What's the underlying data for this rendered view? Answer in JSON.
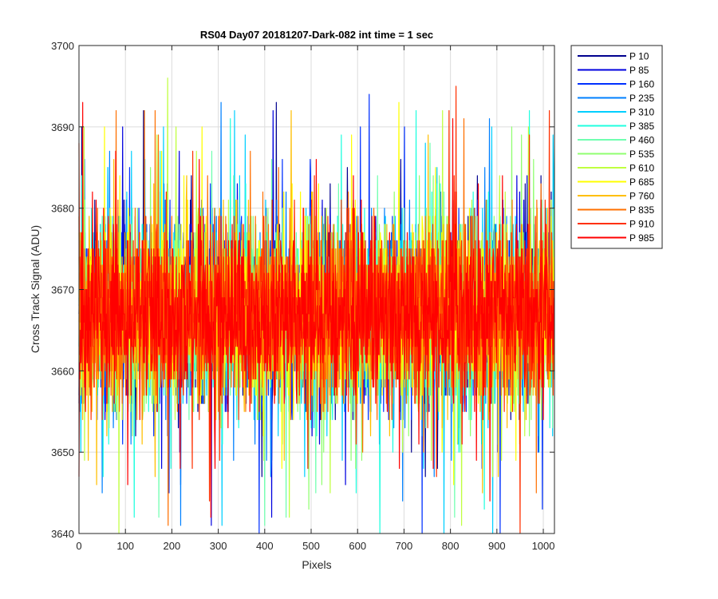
{
  "chart_data": {
    "type": "line",
    "title": "RS04 Day07 20181207-Dark-082 int time = 1 sec",
    "xlabel": "Pixels",
    "ylabel": "Cross Track Signal (ADU)",
    "xlim": [
      0,
      1024
    ],
    "ylim": [
      3640,
      3700
    ],
    "xticks": [
      0,
      100,
      200,
      300,
      400,
      500,
      600,
      700,
      800,
      900,
      1000
    ],
    "yticks": [
      3640,
      3650,
      3660,
      3670,
      3680,
      3690,
      3700
    ],
    "grid": true,
    "legend_position": "outside-top-right",
    "noise_model": {
      "mean": 3667,
      "spread": 8.5,
      "min": 3640,
      "max": 3696,
      "points_per_series": 1024
    },
    "series": [
      {
        "name": "P 10",
        "color": "#00008f"
      },
      {
        "name": "P 85",
        "color": "#0000df"
      },
      {
        "name": "P 160",
        "color": "#0030ff"
      },
      {
        "name": "P 235",
        "color": "#0080ff"
      },
      {
        "name": "P 310",
        "color": "#00cfff"
      },
      {
        "name": "P 385",
        "color": "#20ffdf"
      },
      {
        "name": "P 460",
        "color": "#70ffb0"
      },
      {
        "name": "P 535",
        "color": "#90ff70"
      },
      {
        "name": "P 610",
        "color": "#c0ff40"
      },
      {
        "name": "P 685",
        "color": "#ffff00"
      },
      {
        "name": "P 760",
        "color": "#ffbf00"
      },
      {
        "name": "P 835",
        "color": "#ff7000"
      },
      {
        "name": "P 910",
        "color": "#ff3000"
      },
      {
        "name": "P 985",
        "color": "#ff0000"
      }
    ]
  }
}
